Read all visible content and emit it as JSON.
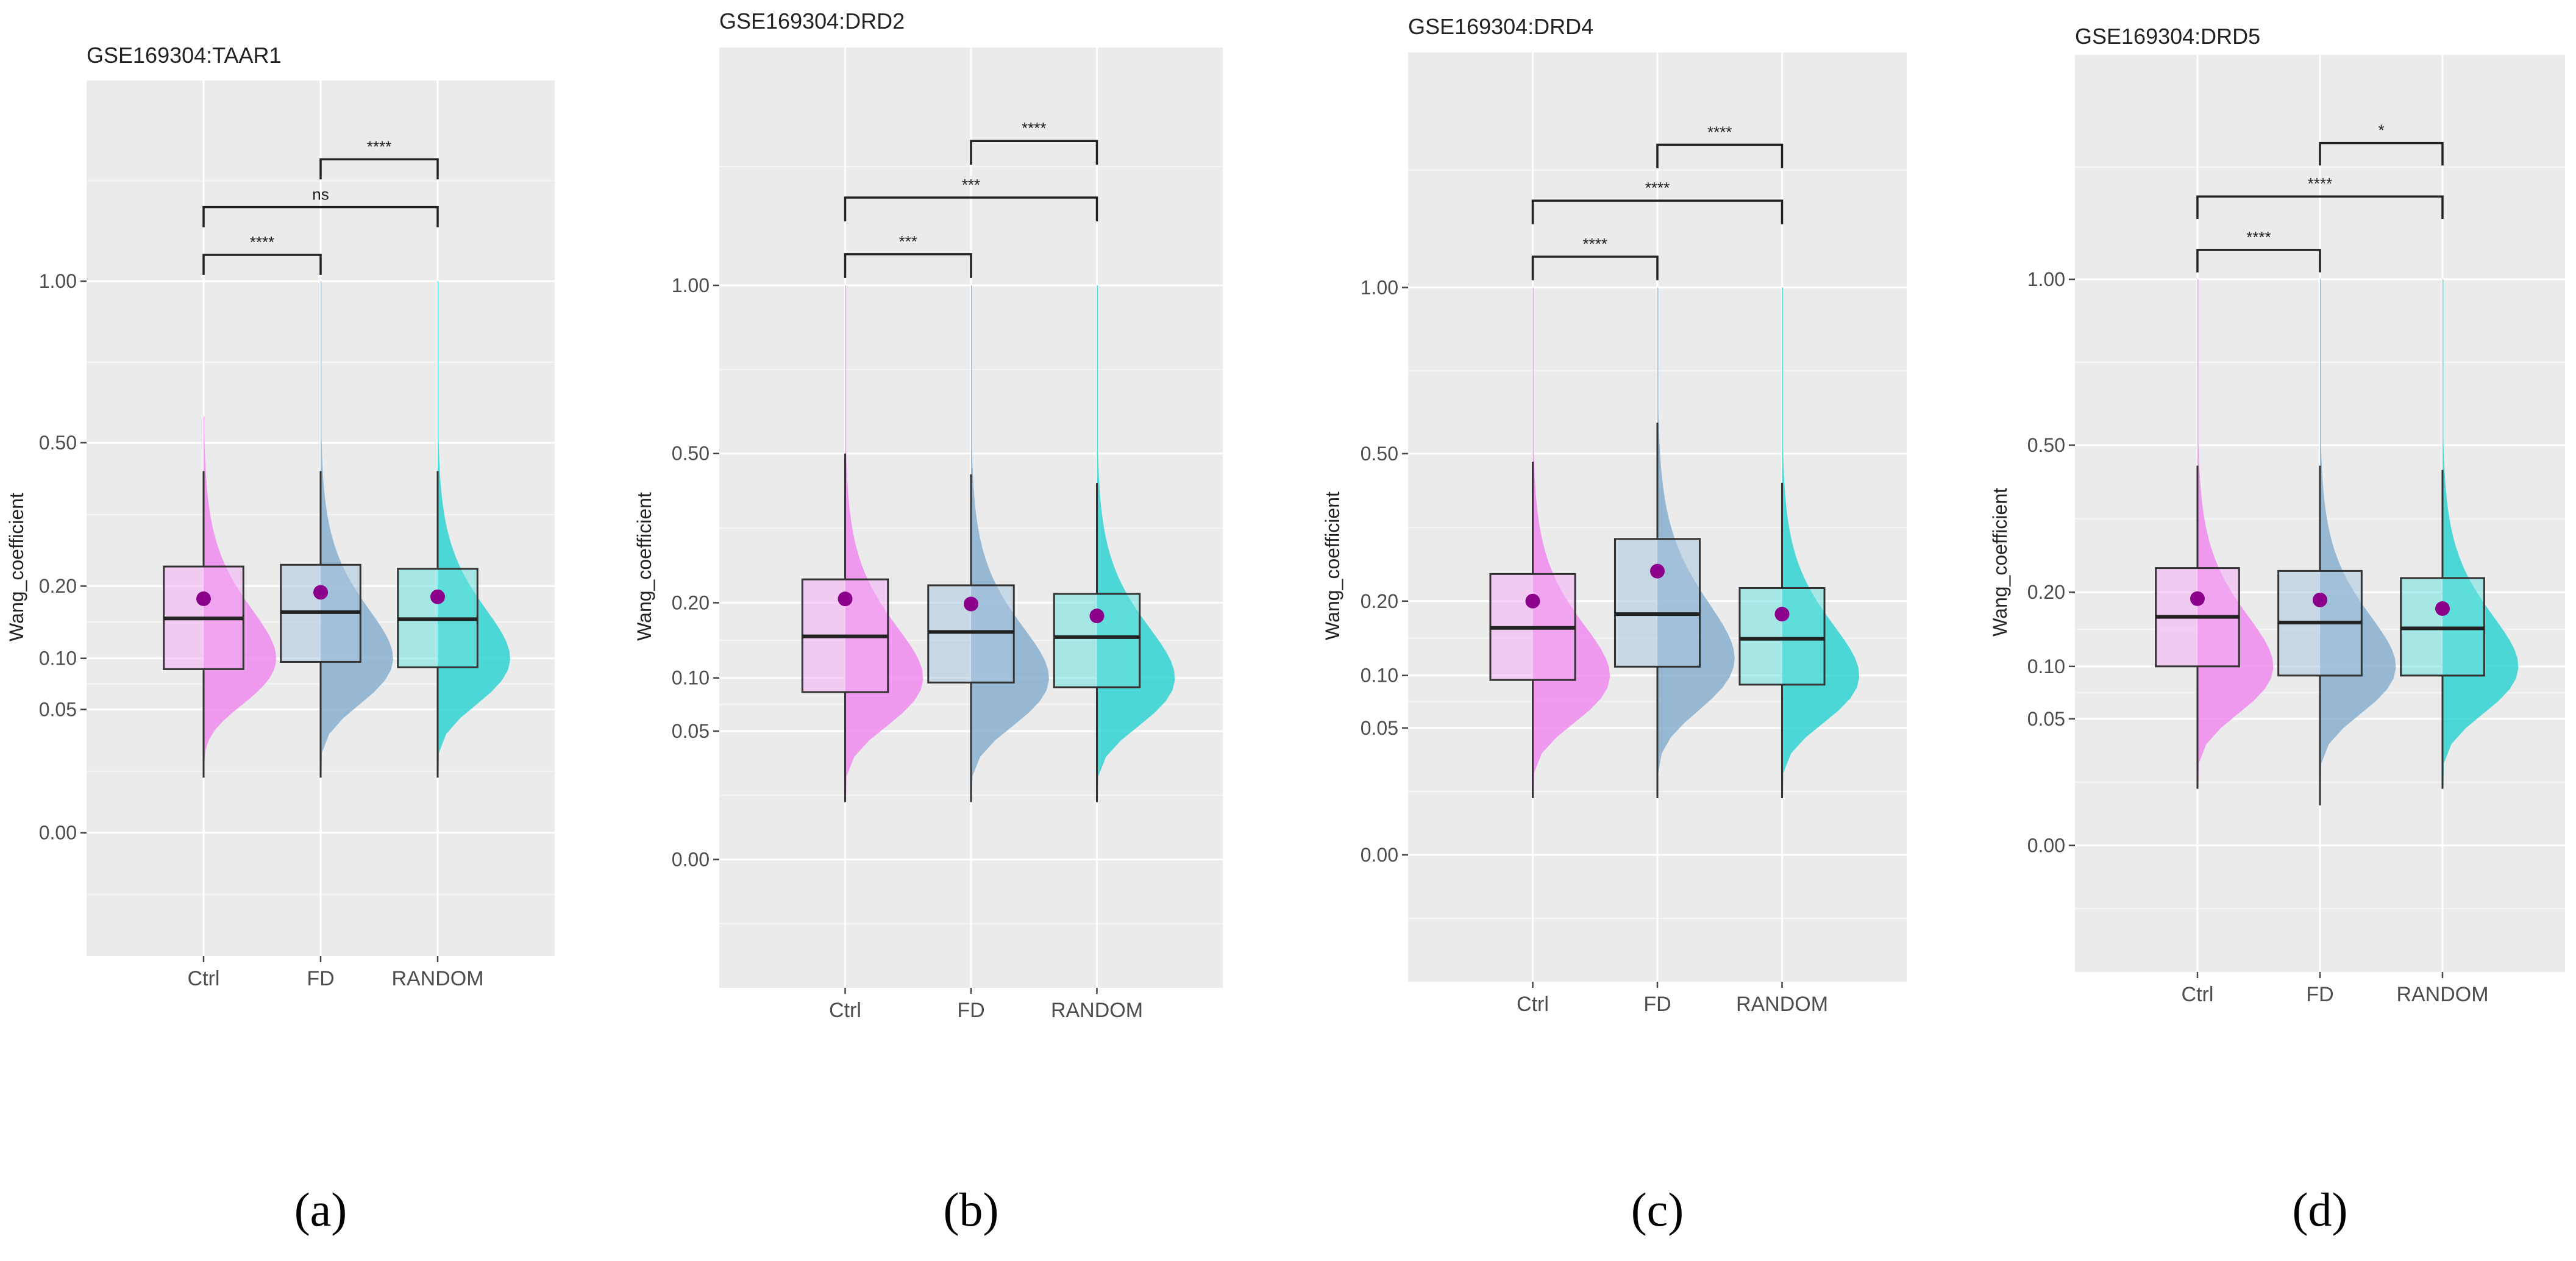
{
  "figure": {
    "captions": [
      "(a)",
      "(b)",
      "(c)",
      "(d)"
    ]
  },
  "colors": {
    "Ctrl": "#ee82ee",
    "FD": "#7fa9cc",
    "RANDOM": "#1fd1cf",
    "mean_point": "#8b008b",
    "panel_bg": "#ebebeb",
    "grid_major": "#ffffff",
    "bracket": "#222222",
    "text": "#222222",
    "axis_text": "#4d4d4d"
  },
  "chart_data": [
    {
      "type": "box",
      "variant": "raincloud (half violin + boxplot + mean point)",
      "title": "GSE169304:TAAR1",
      "xlabel": "",
      "ylabel": "Wang_coefficient",
      "y_scale": "sqrt",
      "ylim": [
        -0.05,
        1.86
      ],
      "yticks": [
        0.0,
        0.05,
        0.1,
        0.2,
        0.5,
        1.0
      ],
      "ytick_labels": [
        "0.00",
        "0.05",
        "0.10",
        "0.20",
        "0.50",
        "1.00"
      ],
      "categories": [
        "Ctrl",
        "FD",
        "RANDOM"
      ],
      "series": [
        {
          "name": "Ctrl",
          "q1": 0.088,
          "median": 0.151,
          "q3": 0.233,
          "whisker_low": 0.01,
          "whisker_high": 0.43,
          "mean": 0.18,
          "violin_min": 0.01,
          "violin_max": 0.57,
          "violin_mode": 0.1
        },
        {
          "name": "FD",
          "q1": 0.096,
          "median": 0.16,
          "q3": 0.236,
          "whisker_low": 0.01,
          "whisker_high": 0.43,
          "mean": 0.19,
          "violin_min": 0.01,
          "violin_max": 1.0,
          "violin_mode": 0.1
        },
        {
          "name": "RANDOM",
          "q1": 0.09,
          "median": 0.15,
          "q3": 0.229,
          "whisker_low": 0.01,
          "whisker_high": 0.43,
          "mean": 0.183,
          "violin_min": 0.01,
          "violin_max": 1.0,
          "violin_mode": 0.1
        }
      ],
      "comparisons": [
        {
          "pair": [
            "Ctrl",
            "FD"
          ],
          "label": "****"
        },
        {
          "pair": [
            "Ctrl",
            "RANDOM"
          ],
          "label": "ns"
        },
        {
          "pair": [
            "FD",
            "RANDOM"
          ],
          "label": "****"
        }
      ]
    },
    {
      "type": "box",
      "variant": "raincloud (half violin + boxplot + mean point)",
      "title": "GSE169304:DRD2",
      "xlabel": "",
      "ylabel": "Wang_coefficient",
      "y_scale": "sqrt",
      "ylim": [
        -0.05,
        2.0
      ],
      "yticks": [
        0.0,
        0.05,
        0.1,
        0.2,
        0.5,
        1.0
      ],
      "ytick_labels": [
        "0.00",
        "0.05",
        "0.10",
        "0.20",
        "0.50",
        "1.00"
      ],
      "categories": [
        "Ctrl",
        "FD",
        "RANDOM"
      ],
      "series": [
        {
          "name": "Ctrl",
          "q1": 0.085,
          "median": 0.151,
          "q3": 0.238,
          "whisker_low": 0.01,
          "whisker_high": 0.5,
          "mean": 0.206,
          "violin_min": 0.01,
          "violin_max": 1.0,
          "violin_mode": 0.1
        },
        {
          "name": "FD",
          "q1": 0.095,
          "median": 0.157,
          "q3": 0.228,
          "whisker_low": 0.01,
          "whisker_high": 0.45,
          "mean": 0.198,
          "violin_min": 0.01,
          "violin_max": 1.0,
          "violin_mode": 0.1
        },
        {
          "name": "RANDOM",
          "q1": 0.09,
          "median": 0.15,
          "q3": 0.214,
          "whisker_low": 0.01,
          "whisker_high": 0.43,
          "mean": 0.18,
          "violin_min": 0.01,
          "violin_max": 1.0,
          "violin_mode": 0.1
        }
      ],
      "comparisons": [
        {
          "pair": [
            "Ctrl",
            "FD"
          ],
          "label": "***"
        },
        {
          "pair": [
            "Ctrl",
            "RANDOM"
          ],
          "label": "***"
        },
        {
          "pair": [
            "FD",
            "RANDOM"
          ],
          "label": "****"
        }
      ]
    },
    {
      "type": "box",
      "variant": "raincloud (half violin + boxplot + mean point)",
      "title": "GSE169304:DRD4",
      "xlabel": "",
      "ylabel": "Wang_coefficient",
      "y_scale": "sqrt",
      "ylim": [
        -0.05,
        2.0
      ],
      "yticks": [
        0.0,
        0.05,
        0.1,
        0.2,
        0.5,
        1.0
      ],
      "ytick_labels": [
        "0.00",
        "0.05",
        "0.10",
        "0.20",
        "0.50",
        "1.00"
      ],
      "categories": [
        "Ctrl",
        "FD",
        "RANDOM"
      ],
      "series": [
        {
          "name": "Ctrl",
          "q1": 0.095,
          "median": 0.16,
          "q3": 0.245,
          "whisker_low": 0.01,
          "whisker_high": 0.48,
          "mean": 0.2,
          "violin_min": 0.01,
          "violin_max": 1.0,
          "violin_mode": 0.1
        },
        {
          "name": "FD",
          "q1": 0.11,
          "median": 0.18,
          "q3": 0.31,
          "whisker_low": 0.01,
          "whisker_high": 0.58,
          "mean": 0.25,
          "violin_min": 0.01,
          "violin_max": 1.0,
          "violin_mode": 0.12
        },
        {
          "name": "RANDOM",
          "q1": 0.09,
          "median": 0.145,
          "q3": 0.221,
          "whisker_low": 0.01,
          "whisker_high": 0.43,
          "mean": 0.18,
          "violin_min": 0.01,
          "violin_max": 1.0,
          "violin_mode": 0.1
        }
      ],
      "comparisons": [
        {
          "pair": [
            "Ctrl",
            "FD"
          ],
          "label": "****"
        },
        {
          "pair": [
            "Ctrl",
            "RANDOM"
          ],
          "label": "****"
        },
        {
          "pair": [
            "FD",
            "RANDOM"
          ],
          "label": "****"
        }
      ]
    },
    {
      "type": "box",
      "variant": "raincloud (half violin + boxplot + mean point)",
      "title": "GSE169304:DRD5",
      "xlabel": "",
      "ylabel": "Wang_coefficient",
      "y_scale": "sqrt",
      "ylim": [
        -0.05,
        1.95
      ],
      "yticks": [
        0.0,
        0.05,
        0.1,
        0.2,
        0.5,
        1.0
      ],
      "ytick_labels": [
        "0.00",
        "0.05",
        "0.10",
        "0.20",
        "0.50",
        "1.00"
      ],
      "categories": [
        "Ctrl",
        "FD",
        "RANDOM"
      ],
      "series": [
        {
          "name": "Ctrl",
          "q1": 0.1,
          "median": 0.163,
          "q3": 0.24,
          "whisker_low": 0.01,
          "whisker_high": 0.45,
          "mean": 0.19,
          "violin_min": 0.01,
          "violin_max": 1.0,
          "violin_mode": 0.1
        },
        {
          "name": "FD",
          "q1": 0.09,
          "median": 0.155,
          "q3": 0.235,
          "whisker_low": 0.005,
          "whisker_high": 0.45,
          "mean": 0.188,
          "violin_min": 0.01,
          "violin_max": 1.0,
          "violin_mode": 0.1
        },
        {
          "name": "RANDOM",
          "q1": 0.09,
          "median": 0.147,
          "q3": 0.223,
          "whisker_low": 0.01,
          "whisker_high": 0.44,
          "mean": 0.175,
          "violin_min": 0.01,
          "violin_max": 1.0,
          "violin_mode": 0.1
        }
      ],
      "comparisons": [
        {
          "pair": [
            "Ctrl",
            "FD"
          ],
          "label": "****"
        },
        {
          "pair": [
            "Ctrl",
            "RANDOM"
          ],
          "label": "****"
        },
        {
          "pair": [
            "FD",
            "RANDOM"
          ],
          "label": "*"
        }
      ]
    }
  ]
}
